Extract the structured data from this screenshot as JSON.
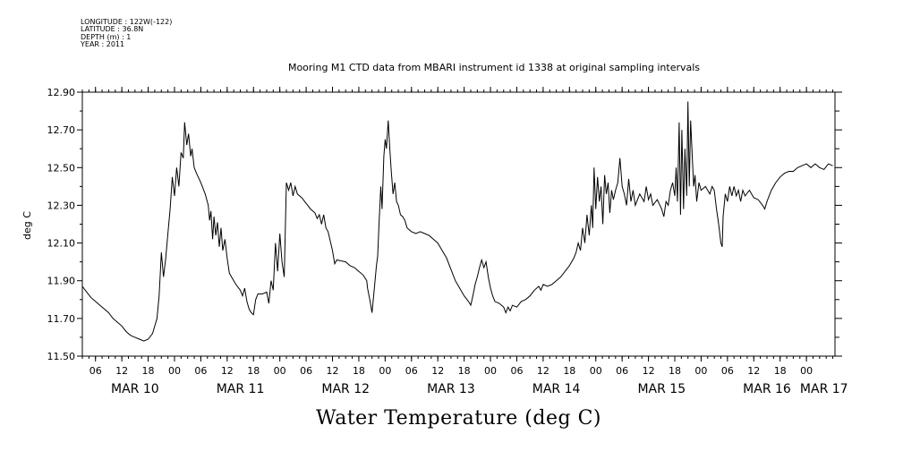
{
  "meta": {
    "longitude": "LONGITUDE : 122W(-122)",
    "latitude": "LATITUDE : 36.8N",
    "depth": "DEPTH (m) : 1",
    "year": "YEAR : 2011"
  },
  "chart_data": {
    "type": "line",
    "title": "Mooring M1 CTD data from MBARI instrument id 1338 at original sampling intervals",
    "xlabel": "Water Temperature (deg C)",
    "ylabel": "deg C",
    "ylim": [
      11.5,
      12.9
    ],
    "y_ticks": [
      "11.50",
      "11.70",
      "11.90",
      "12.10",
      "12.30",
      "12.50",
      "12.70",
      "12.90"
    ],
    "x_unit": "hours since start",
    "x_range_hours": [
      0,
      171.5
    ],
    "x_start": "MAR 10 03:00 2011",
    "x_tick_labels": [
      "06",
      "12",
      "18",
      "00",
      "06",
      "12",
      "18",
      "00",
      "06",
      "12",
      "18",
      "00",
      "06",
      "12",
      "18",
      "00",
      "06",
      "12",
      "18",
      "00",
      "06",
      "12",
      "18",
      "00",
      "06",
      "12",
      "18",
      "00"
    ],
    "x_tick_hours": [
      3,
      9,
      15,
      21,
      27,
      33,
      39,
      45,
      51,
      57,
      63,
      69,
      75,
      81,
      87,
      93,
      99,
      105,
      111,
      117,
      123,
      129,
      135,
      141,
      147,
      153,
      159,
      165
    ],
    "day_labels": [
      "MAR 10",
      "MAR 11",
      "MAR 12",
      "MAR 13",
      "MAR 14",
      "MAR 15",
      "MAR 16",
      "MAR 17"
    ],
    "day_label_hours": [
      12,
      36,
      60,
      84,
      108,
      132,
      156,
      169
    ],
    "grid": false,
    "series": [
      {
        "name": "",
        "points": [
          [
            0,
            11.87
          ],
          [
            1,
            11.84
          ],
          [
            2,
            11.81
          ],
          [
            3,
            11.79
          ],
          [
            4,
            11.77
          ],
          [
            5,
            11.75
          ],
          [
            6,
            11.73
          ],
          [
            7,
            11.7
          ],
          [
            8,
            11.68
          ],
          [
            9,
            11.66
          ],
          [
            10,
            11.63
          ],
          [
            11,
            11.61
          ],
          [
            12,
            11.6
          ],
          [
            13,
            11.59
          ],
          [
            14,
            11.58
          ],
          [
            15,
            11.59
          ],
          [
            16,
            11.62
          ],
          [
            17,
            11.7
          ],
          [
            17.5,
            11.82
          ],
          [
            18,
            12.05
          ],
          [
            18.5,
            11.92
          ],
          [
            19,
            12.02
          ],
          [
            19.5,
            12.15
          ],
          [
            20,
            12.28
          ],
          [
            20.5,
            12.45
          ],
          [
            21,
            12.35
          ],
          [
            21.5,
            12.5
          ],
          [
            22,
            12.4
          ],
          [
            22.5,
            12.58
          ],
          [
            23,
            12.55
          ],
          [
            23.3,
            12.74
          ],
          [
            23.8,
            12.62
          ],
          [
            24.2,
            12.68
          ],
          [
            24.7,
            12.56
          ],
          [
            25,
            12.6
          ],
          [
            25.5,
            12.5
          ],
          [
            26,
            12.47
          ],
          [
            27,
            12.42
          ],
          [
            28,
            12.36
          ],
          [
            28.7,
            12.3
          ],
          [
            29,
            12.22
          ],
          [
            29.3,
            12.27
          ],
          [
            29.7,
            12.12
          ],
          [
            30,
            12.24
          ],
          [
            30.4,
            12.14
          ],
          [
            30.8,
            12.21
          ],
          [
            31.2,
            12.08
          ],
          [
            31.6,
            12.18
          ],
          [
            32,
            12.06
          ],
          [
            32.5,
            12.12
          ],
          [
            33,
            12.02
          ],
          [
            33.5,
            11.94
          ],
          [
            34,
            11.92
          ],
          [
            35,
            11.88
          ],
          [
            36,
            11.85
          ],
          [
            36.5,
            11.82
          ],
          [
            37,
            11.86
          ],
          [
            37.5,
            11.79
          ],
          [
            38,
            11.75
          ],
          [
            38.5,
            11.73
          ],
          [
            39,
            11.72
          ],
          [
            39.5,
            11.8
          ],
          [
            40,
            11.83
          ],
          [
            41,
            11.83
          ],
          [
            42,
            11.84
          ],
          [
            42.5,
            11.78
          ],
          [
            43,
            11.9
          ],
          [
            43.5,
            11.85
          ],
          [
            44,
            12.1
          ],
          [
            44.5,
            11.95
          ],
          [
            45,
            12.15
          ],
          [
            45.5,
            12.0
          ],
          [
            46,
            11.92
          ],
          [
            46.5,
            12.42
          ],
          [
            47,
            12.38
          ],
          [
            47.5,
            12.42
          ],
          [
            48,
            12.35
          ],
          [
            48.5,
            12.4
          ],
          [
            49,
            12.36
          ],
          [
            50,
            12.34
          ],
          [
            51,
            12.31
          ],
          [
            52,
            12.28
          ],
          [
            53,
            12.26
          ],
          [
            53.5,
            12.23
          ],
          [
            54,
            12.25
          ],
          [
            54.5,
            12.2
          ],
          [
            55,
            12.25
          ],
          [
            55.5,
            12.18
          ],
          [
            56,
            12.16
          ],
          [
            57,
            12.06
          ],
          [
            57.5,
            11.99
          ],
          [
            58,
            12.01
          ],
          [
            60,
            12.0
          ],
          [
            61,
            11.98
          ],
          [
            62,
            11.97
          ],
          [
            63,
            11.95
          ],
          [
            64,
            11.93
          ],
          [
            64.8,
            11.9
          ],
          [
            65,
            11.86
          ],
          [
            65.5,
            11.8
          ],
          [
            66,
            11.73
          ],
          [
            66.5,
            11.85
          ],
          [
            67,
            11.98
          ],
          [
            67.3,
            12.03
          ],
          [
            67.6,
            12.2
          ],
          [
            68,
            12.4
          ],
          [
            68.3,
            12.28
          ],
          [
            68.7,
            12.56
          ],
          [
            69,
            12.65
          ],
          [
            69.3,
            12.6
          ],
          [
            69.7,
            12.75
          ],
          [
            70,
            12.62
          ],
          [
            70.4,
            12.48
          ],
          [
            70.8,
            12.36
          ],
          [
            71.2,
            12.42
          ],
          [
            71.6,
            12.32
          ],
          [
            72,
            12.3
          ],
          [
            72.5,
            12.25
          ],
          [
            73,
            12.24
          ],
          [
            73.5,
            12.22
          ],
          [
            74,
            12.18
          ],
          [
            75,
            12.16
          ],
          [
            76,
            12.15
          ],
          [
            77,
            12.16
          ],
          [
            78,
            12.15
          ],
          [
            79,
            12.14
          ],
          [
            80,
            12.12
          ],
          [
            81,
            12.1
          ],
          [
            82,
            12.06
          ],
          [
            83,
            12.02
          ],
          [
            84,
            11.96
          ],
          [
            85,
            11.9
          ],
          [
            86,
            11.86
          ],
          [
            87,
            11.82
          ],
          [
            88,
            11.79
          ],
          [
            88.5,
            11.77
          ],
          [
            89,
            11.82
          ],
          [
            89.5,
            11.88
          ],
          [
            90,
            11.92
          ],
          [
            90.5,
            11.97
          ],
          [
            91,
            12.01
          ],
          [
            91.5,
            11.97
          ],
          [
            92,
            12.0
          ],
          [
            92.5,
            11.92
          ],
          [
            93,
            11.86
          ],
          [
            93.5,
            11.82
          ],
          [
            94,
            11.79
          ],
          [
            95,
            11.78
          ],
          [
            96,
            11.76
          ],
          [
            96.5,
            11.73
          ],
          [
            97,
            11.76
          ],
          [
            97.5,
            11.74
          ],
          [
            98,
            11.77
          ],
          [
            99,
            11.76
          ],
          [
            100,
            11.79
          ],
          [
            101,
            11.8
          ],
          [
            102,
            11.82
          ],
          [
            103,
            11.85
          ],
          [
            104,
            11.87
          ],
          [
            104.5,
            11.85
          ],
          [
            105,
            11.88
          ],
          [
            106,
            11.87
          ],
          [
            107,
            11.88
          ],
          [
            108,
            11.9
          ],
          [
            109,
            11.92
          ],
          [
            110,
            11.95
          ],
          [
            111,
            11.98
          ],
          [
            112,
            12.02
          ],
          [
            112.5,
            12.05
          ],
          [
            113,
            12.1
          ],
          [
            113.5,
            12.06
          ],
          [
            114,
            12.18
          ],
          [
            114.5,
            12.1
          ],
          [
            115,
            12.25
          ],
          [
            115.5,
            12.14
          ],
          [
            116,
            12.3
          ],
          [
            116.3,
            12.18
          ],
          [
            116.6,
            12.5
          ],
          [
            117,
            12.28
          ],
          [
            117.4,
            12.45
          ],
          [
            117.8,
            12.32
          ],
          [
            118.2,
            12.4
          ],
          [
            118.6,
            12.2
          ],
          [
            119,
            12.46
          ],
          [
            119.4,
            12.36
          ],
          [
            119.8,
            12.42
          ],
          [
            120.2,
            12.26
          ],
          [
            120.6,
            12.38
          ],
          [
            121,
            12.33
          ],
          [
            121.5,
            12.38
          ],
          [
            122,
            12.42
          ],
          [
            122.5,
            12.55
          ],
          [
            123,
            12.4
          ],
          [
            123.5,
            12.36
          ],
          [
            124,
            12.3
          ],
          [
            124.5,
            12.44
          ],
          [
            125,
            12.32
          ],
          [
            125.5,
            12.38
          ],
          [
            126,
            12.3
          ],
          [
            127,
            12.36
          ],
          [
            128,
            12.32
          ],
          [
            128.5,
            12.4
          ],
          [
            129,
            12.33
          ],
          [
            129.5,
            12.36
          ],
          [
            130,
            12.3
          ],
          [
            131,
            12.33
          ],
          [
            132,
            12.28
          ],
          [
            132.5,
            12.24
          ],
          [
            133,
            12.32
          ],
          [
            133.5,
            12.3
          ],
          [
            134,
            12.38
          ],
          [
            134.5,
            12.42
          ],
          [
            135,
            12.35
          ],
          [
            135.3,
            12.5
          ],
          [
            135.6,
            12.32
          ],
          [
            136,
            12.74
          ],
          [
            136.3,
            12.25
          ],
          [
            136.6,
            12.7
          ],
          [
            137,
            12.28
          ],
          [
            137.3,
            12.6
          ],
          [
            137.7,
            12.35
          ],
          [
            138,
            12.85
          ],
          [
            138.3,
            12.4
          ],
          [
            138.6,
            12.75
          ],
          [
            139,
            12.55
          ],
          [
            139.3,
            12.4
          ],
          [
            139.6,
            12.46
          ],
          [
            140,
            12.32
          ],
          [
            140.5,
            12.42
          ],
          [
            141,
            12.38
          ],
          [
            142,
            12.4
          ],
          [
            143,
            12.36
          ],
          [
            143.5,
            12.4
          ],
          [
            144,
            12.38
          ],
          [
            144.5,
            12.28
          ],
          [
            145,
            12.2
          ],
          [
            145.5,
            12.1
          ],
          [
            145.8,
            12.08
          ],
          [
            146,
            12.24
          ],
          [
            146.5,
            12.36
          ],
          [
            147,
            12.32
          ],
          [
            147.5,
            12.4
          ],
          [
            148,
            12.35
          ],
          [
            148.5,
            12.4
          ],
          [
            149,
            12.35
          ],
          [
            149.5,
            12.38
          ],
          [
            150,
            12.32
          ],
          [
            150.5,
            12.38
          ],
          [
            151,
            12.35
          ],
          [
            152,
            12.38
          ],
          [
            153,
            12.34
          ],
          [
            154,
            12.33
          ],
          [
            155,
            12.3
          ],
          [
            155.5,
            12.28
          ],
          [
            156,
            12.32
          ],
          [
            157,
            12.38
          ],
          [
            158,
            12.42
          ],
          [
            159,
            12.45
          ],
          [
            160,
            12.47
          ],
          [
            161,
            12.48
          ],
          [
            162,
            12.48
          ],
          [
            163,
            12.5
          ],
          [
            164,
            12.51
          ],
          [
            165,
            12.52
          ],
          [
            166,
            12.5
          ],
          [
            167,
            12.52
          ],
          [
            168,
            12.5
          ],
          [
            169,
            12.49
          ],
          [
            170,
            12.52
          ],
          [
            171,
            12.51
          ]
        ]
      }
    ]
  }
}
